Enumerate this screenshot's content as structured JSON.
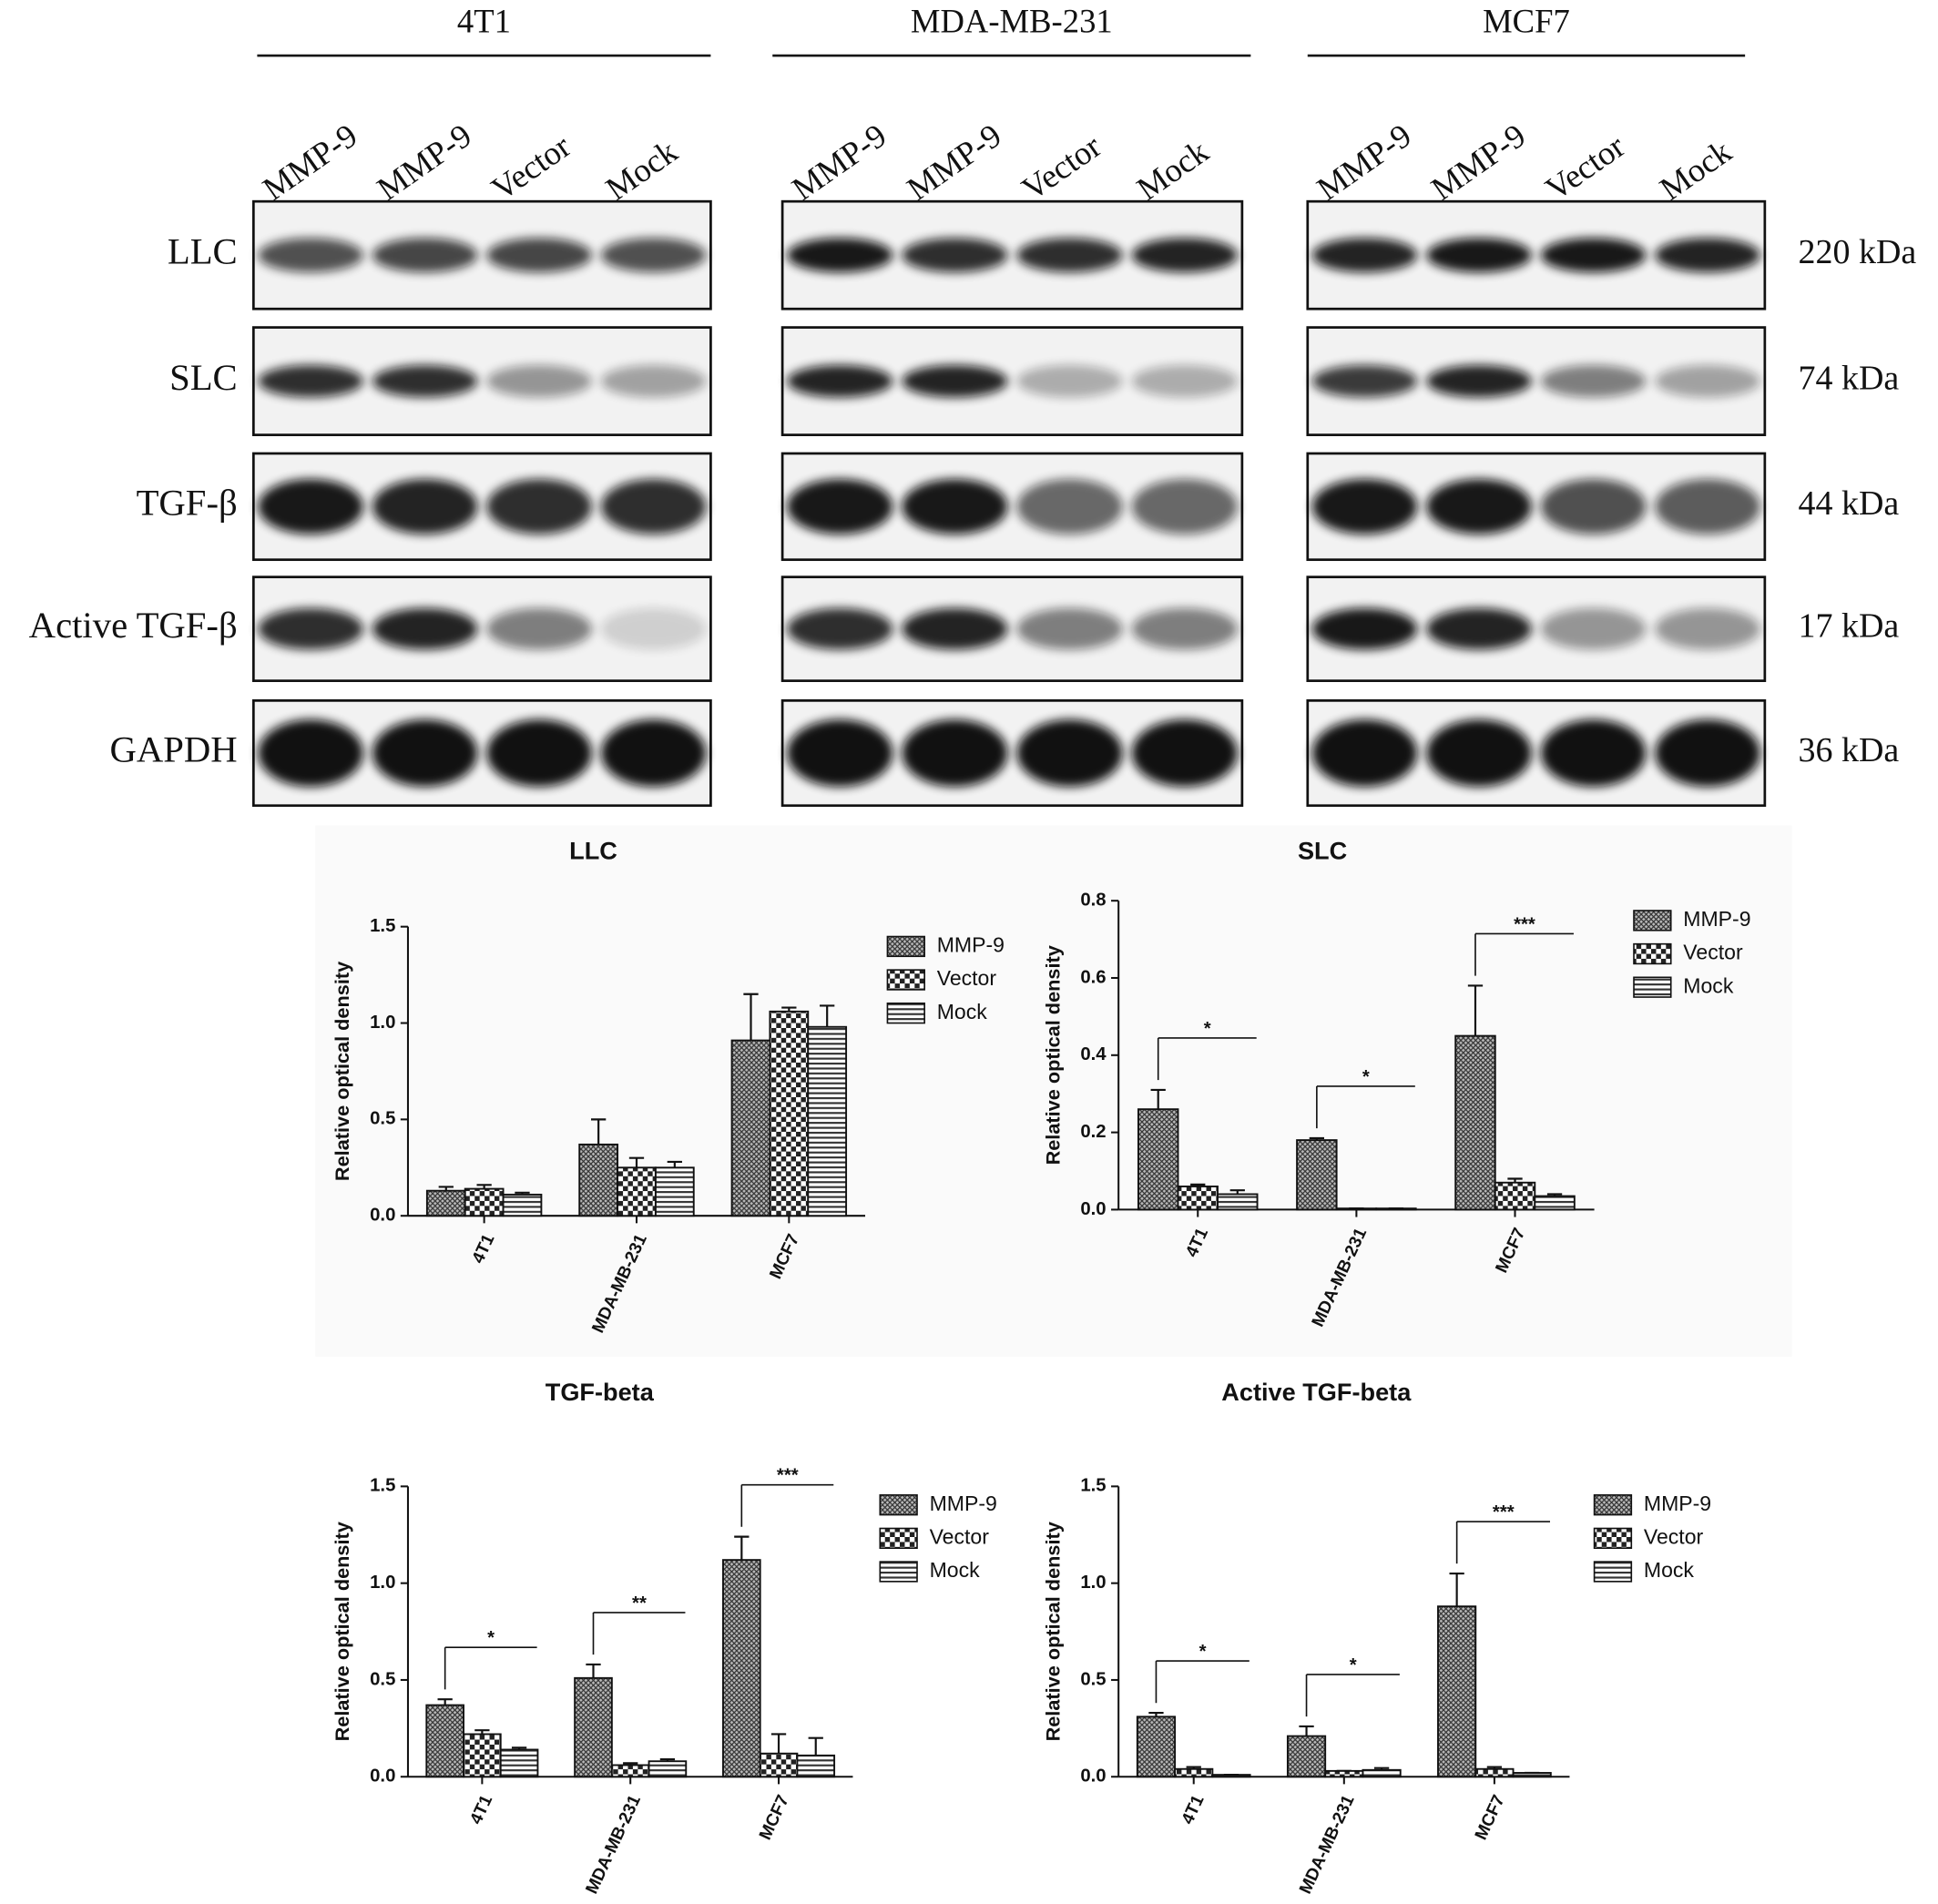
{
  "blot": {
    "cell_lines": [
      {
        "name": "4T1",
        "lanes": [
          "MMP-9",
          "MMP-9",
          "Vector",
          "Mock"
        ]
      },
      {
        "name": "MDA-MB-231",
        "lanes": [
          "MMP-9",
          "MMP-9",
          "Vector",
          "Mock"
        ]
      },
      {
        "name": "MCF7",
        "lanes": [
          "MMP-9",
          "MMP-9",
          "Vector",
          "Mock"
        ]
      }
    ],
    "proteins": [
      {
        "name": "LLC",
        "size": "220 kDa"
      },
      {
        "name": "SLC",
        "size": "74 kDa"
      },
      {
        "name": "TGF-β",
        "size": "44 kDa"
      },
      {
        "name": "Active TGF-β",
        "size": "17 kDa"
      },
      {
        "name": "GAPDH",
        "size": "36 kDa"
      }
    ]
  },
  "chart_data": [
    {
      "type": "bar",
      "title": "LLC",
      "y_label": "Relative optical density",
      "categories": [
        "4T1",
        "MDA-MB-231",
        "MCF7"
      ],
      "ylim": [
        0,
        1.5
      ],
      "yticks": [
        {
          "value": 0,
          "label": "0.0"
        },
        0.5,
        {
          "value": 1,
          "label": "1.0"
        },
        1.5
      ],
      "series": [
        {
          "name": "MMP-9",
          "pattern": "crosshatch",
          "values": [
            0.13,
            0.37,
            0.91
          ],
          "errors": [
            0.02,
            0.13,
            0.24
          ]
        },
        {
          "name": "Vector",
          "pattern": "checker",
          "values": [
            0.14,
            0.25,
            1.06
          ],
          "errors": [
            0.02,
            0.05,
            0.02
          ]
        },
        {
          "name": "Mock",
          "pattern": "stripes",
          "values": [
            0.11,
            0.25,
            0.98
          ],
          "errors": [
            0.01,
            0.03,
            0.11
          ]
        }
      ],
      "legend": "right"
    },
    {
      "type": "bar",
      "title": "SLC",
      "y_label": "Relative optical density",
      "categories": [
        "4T1",
        "MDA-MB-231",
        "MCF7"
      ],
      "ylim": [
        0,
        0.8
      ],
      "yticks": [
        {
          "value": 0,
          "label": "0.0"
        },
        0.2,
        0.4,
        0.6,
        0.8
      ],
      "series": [
        {
          "name": "MMP-9",
          "pattern": "crosshatch",
          "values": [
            0.26,
            0.18,
            0.45
          ],
          "errors": [
            0.05,
            0.005,
            0.13
          ]
        },
        {
          "name": "Vector",
          "pattern": "checker",
          "values": [
            0.06,
            0.003,
            0.07
          ],
          "errors": [
            0.005,
            0,
            0.01
          ]
        },
        {
          "name": "Mock",
          "pattern": "stripes",
          "values": [
            0.04,
            0.003,
            0.035
          ],
          "errors": [
            0.01,
            0,
            0.005
          ]
        }
      ],
      "significance": [
        "*",
        "*",
        "***"
      ],
      "legend": "right"
    },
    {
      "type": "bar",
      "title": "TGF-beta",
      "y_label": "Relative optical density",
      "categories": [
        "4T1",
        "MDA-MB-231",
        "MCF7"
      ],
      "ylim": [
        0,
        1.5
      ],
      "yticks": [
        {
          "value": 0,
          "label": "0.0"
        },
        0.5,
        {
          "value": 1,
          "label": "1.0"
        },
        1.5
      ],
      "series": [
        {
          "name": "MMP-9",
          "pattern": "crosshatch",
          "values": [
            0.37,
            0.51,
            1.12
          ],
          "errors": [
            0.03,
            0.07,
            0.12
          ]
        },
        {
          "name": "Vector",
          "pattern": "checker",
          "values": [
            0.22,
            0.06,
            0.12
          ],
          "errors": [
            0.02,
            0.01,
            0.1
          ]
        },
        {
          "name": "Mock",
          "pattern": "stripes",
          "values": [
            0.14,
            0.08,
            0.11
          ],
          "errors": [
            0.01,
            0.01,
            0.09
          ]
        }
      ],
      "significance": [
        "*",
        "**",
        "***"
      ],
      "legend": "right"
    },
    {
      "type": "bar",
      "title": "Active TGF-beta",
      "y_label": "Relative optical density",
      "categories": [
        "4T1",
        "MDA-MB-231",
        "MCF7"
      ],
      "ylim": [
        0,
        1.5
      ],
      "yticks": [
        {
          "value": 0,
          "label": "0.0"
        },
        0.5,
        {
          "value": 1,
          "label": "1.0"
        },
        1.5
      ],
      "series": [
        {
          "name": "MMP-9",
          "pattern": "crosshatch",
          "values": [
            0.31,
            0.21,
            0.88
          ],
          "errors": [
            0.02,
            0.05,
            0.17
          ]
        },
        {
          "name": "Vector",
          "pattern": "checker",
          "values": [
            0.04,
            0.03,
            0.04
          ],
          "errors": [
            0.01,
            0,
            0.01
          ]
        },
        {
          "name": "Mock",
          "pattern": "stripes",
          "values": [
            0.01,
            0.035,
            0.02
          ],
          "errors": [
            0,
            0.01,
            0
          ]
        }
      ],
      "significance": [
        "*",
        "*",
        "***"
      ],
      "legend": "right"
    }
  ]
}
